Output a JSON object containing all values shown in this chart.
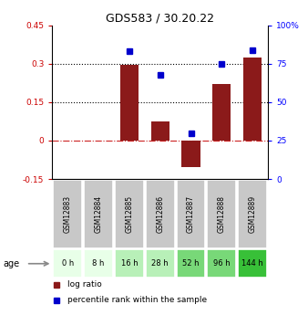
{
  "title": "GDS583 / 30.20.22",
  "samples": [
    "GSM12883",
    "GSM12884",
    "GSM12885",
    "GSM12886",
    "GSM12887",
    "GSM12888",
    "GSM12889"
  ],
  "ages": [
    "0 h",
    "8 h",
    "16 h",
    "28 h",
    "52 h",
    "96 h",
    "144 h"
  ],
  "log_ratio": [
    0.0,
    0.0,
    0.295,
    0.075,
    -0.105,
    0.22,
    0.325
  ],
  "percentile_rank": [
    null,
    null,
    83,
    68,
    30,
    75,
    84
  ],
  "ylim_left": [
    -0.15,
    0.45
  ],
  "ylim_right": [
    0,
    100
  ],
  "yticks_left": [
    -0.15,
    0.0,
    0.15,
    0.3,
    0.45
  ],
  "yticks_right": [
    0,
    25,
    50,
    75,
    100
  ],
  "ytick_labels_left": [
    "-0.15",
    "0",
    "0.15",
    "0.3",
    "0.45"
  ],
  "ytick_labels_right": [
    "0",
    "25",
    "50",
    "75",
    "100%"
  ],
  "hlines_dotted": [
    0.15,
    0.3
  ],
  "hline_dashdot": 0.0,
  "bar_color": "#8B1A1A",
  "dot_color": "#0000CC",
  "age_colors": [
    "#e8ffe8",
    "#e8ffe8",
    "#b8f0b8",
    "#b8f0b8",
    "#78d878",
    "#78d878",
    "#38c038"
  ],
  "sample_bg_color": "#c8c8c8",
  "legend_bar_label": "log ratio",
  "legend_dot_label": "percentile rank within the sample",
  "age_label": "age"
}
